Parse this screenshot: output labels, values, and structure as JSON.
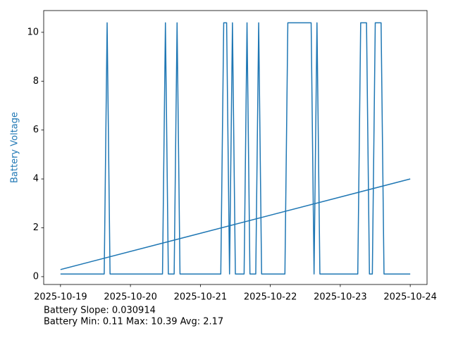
{
  "chart_data": {
    "type": "line",
    "ylabel": "Battery Voltage",
    "ylabel_color": "#1f77b4",
    "annotations": [
      "Battery Slope: 0.030914",
      "Battery Min: 0.11 Max: 10.39 Avg: 2.17"
    ],
    "xlim": [
      "2025-10-18T18:14",
      "2025-10-24T05:46"
    ],
    "xticks": [
      "2025-10-19",
      "2025-10-20",
      "2025-10-21",
      "2025-10-22",
      "2025-10-23",
      "2025-10-24"
    ],
    "ylim": [
      -0.32,
      10.89
    ],
    "yticks": [
      0,
      2,
      4,
      6,
      8,
      10
    ],
    "grid": false,
    "series": [
      {
        "color": "#1f77b4",
        "x": [
          "2025-10-19T00:00",
          "2025-10-19T15:00",
          "2025-10-19T16:00",
          "2025-10-19T17:00",
          "2025-10-20T11:00",
          "2025-10-20T12:00",
          "2025-10-20T13:00",
          "2025-10-20T15:00",
          "2025-10-20T16:00",
          "2025-10-20T17:00",
          "2025-10-21T07:00",
          "2025-10-21T08:00",
          "2025-10-21T09:00",
          "2025-10-21T10:00",
          "2025-10-21T11:00",
          "2025-10-21T12:00",
          "2025-10-21T15:00",
          "2025-10-21T16:00",
          "2025-10-21T17:00",
          "2025-10-21T19:00",
          "2025-10-21T20:00",
          "2025-10-21T21:00",
          "2025-10-22T05:00",
          "2025-10-22T06:00",
          "2025-10-22T14:00",
          "2025-10-22T15:00",
          "2025-10-22T16:00",
          "2025-10-22T17:00",
          "2025-10-23T06:00",
          "2025-10-23T07:00",
          "2025-10-23T09:00",
          "2025-10-23T10:00",
          "2025-10-23T11:00",
          "2025-10-23T12:00",
          "2025-10-23T14:00",
          "2025-10-23T15:00",
          "2025-10-24T00:00"
        ],
        "values": [
          0.11,
          0.11,
          10.39,
          0.11,
          0.11,
          10.39,
          0.11,
          0.11,
          10.39,
          0.11,
          0.11,
          10.39,
          10.39,
          0.11,
          10.39,
          0.11,
          0.11,
          10.39,
          0.11,
          0.11,
          10.39,
          0.11,
          0.11,
          10.39,
          10.39,
          0.11,
          10.39,
          0.11,
          0.11,
          10.39,
          10.39,
          0.11,
          0.11,
          10.39,
          10.39,
          0.11,
          0.11
        ]
      },
      {
        "color": "#1f77b4",
        "x": [
          "2025-10-19T00:00",
          "2025-10-24T00:00"
        ],
        "values": [
          0.29,
          4.0
        ]
      }
    ]
  }
}
